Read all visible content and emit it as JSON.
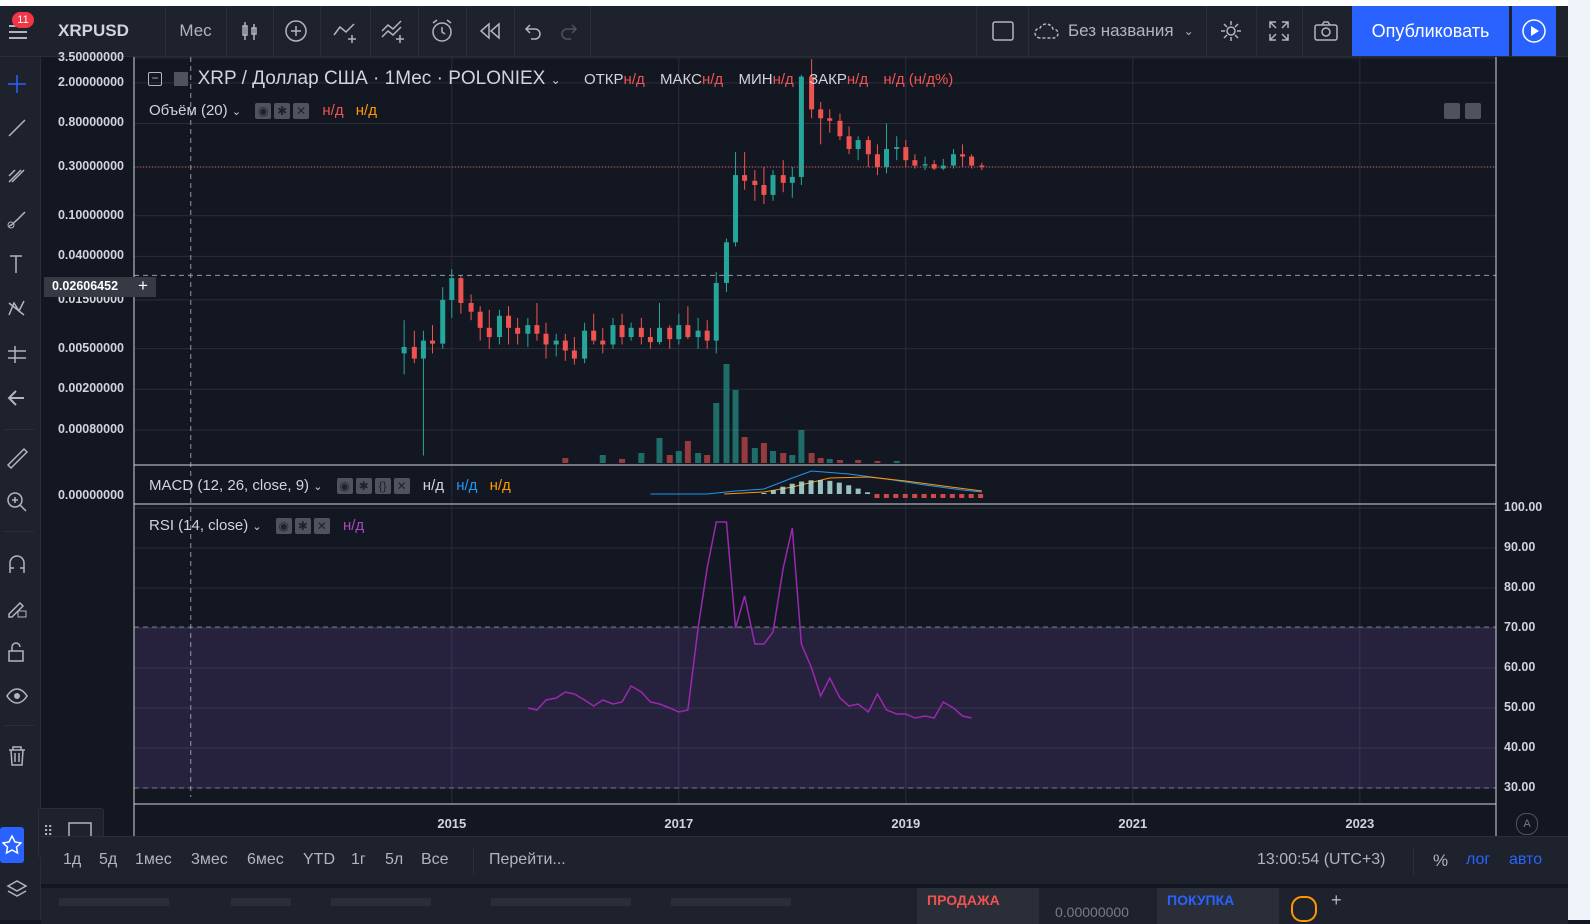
{
  "toolbar": {
    "notification_count": "11",
    "symbol": "XRPUSD",
    "interval": "Мес",
    "layout_name": "Без названия",
    "publish_label": "Опубликовать"
  },
  "legend": {
    "title": "XRP / Доллар США · 1Мес · POLONIEX",
    "open_label": "ОТКР",
    "open_value": "н/д",
    "high_label": "МАКС",
    "high_value": "н/д",
    "low_label": "МИН",
    "low_value": "н/д",
    "close_label": "ЗАКР",
    "close_value": "н/д",
    "change_value": "н/д (н/д%)"
  },
  "volume_legend": {
    "name": "Объём (20)",
    "v1": "н/д",
    "v2": "н/д"
  },
  "macd_legend": {
    "name": "MACD (12, 26, close, 9)",
    "v1": "н/д",
    "v2": "н/д",
    "v3": "н/д"
  },
  "rsi_legend": {
    "name": "RSI (14, close)",
    "v1": "н/д"
  },
  "price_axis": [
    "3.50000000",
    "2.00000000",
    "0.80000000",
    "0.30000000",
    "0.10000000",
    "0.04000000",
    "0.01500000",
    "0.00500000",
    "0.00200000",
    "0.00080000"
  ],
  "crosshair_price": "0.02606452",
  "macd_axis": "0.00000000",
  "rsi_axis": [
    "100.00",
    "90.00",
    "80.00",
    "70.00",
    "60.00",
    "50.00",
    "40.00",
    "30.00"
  ],
  "time_axis": [
    "2015",
    "2017",
    "2019",
    "2021",
    "2023"
  ],
  "bottom": {
    "ranges": [
      "1д",
      "5д",
      "1мес",
      "3мес",
      "6мес",
      "YTD",
      "1г",
      "5л",
      "Все"
    ],
    "goto": "Перейти...",
    "clock": "13:00:54 (UTC+3)",
    "percent": "%",
    "log": "лог",
    "auto": "авто"
  },
  "panel": {
    "sell": "ПРОДАЖА",
    "buy": "ПОКУПКА",
    "price_partial": "0.00000000"
  },
  "colors": {
    "up": "#26a69a",
    "down": "#ef5350",
    "rsi": "#9c27b0",
    "accent": "#2962ff"
  },
  "chart_data": {
    "type": "candlestick",
    "title": "XRP / Доллар США · 1Мес · POLONIEX",
    "y_scale": "log",
    "x_range": [
      2012.2,
      2024.2
    ],
    "candles": [
      {
        "t": 2014.58,
        "o": 0.0045,
        "h": 0.0095,
        "l": 0.0028,
        "c": 0.0052
      },
      {
        "t": 2014.67,
        "o": 0.0052,
        "h": 0.0075,
        "l": 0.0036,
        "c": 0.004
      },
      {
        "t": 2014.75,
        "o": 0.004,
        "h": 0.0075,
        "l": 0.00045,
        "c": 0.006
      },
      {
        "t": 2014.83,
        "o": 0.006,
        "h": 0.0085,
        "l": 0.0045,
        "c": 0.0056
      },
      {
        "t": 2014.92,
        "o": 0.0056,
        "h": 0.02,
        "l": 0.005,
        "c": 0.015
      },
      {
        "t": 2015.0,
        "o": 0.015,
        "h": 0.03,
        "l": 0.01,
        "c": 0.0245
      },
      {
        "t": 2015.08,
        "o": 0.0245,
        "h": 0.026,
        "l": 0.011,
        "c": 0.014
      },
      {
        "t": 2015.17,
        "o": 0.014,
        "h": 0.017,
        "l": 0.0095,
        "c": 0.0115
      },
      {
        "t": 2015.25,
        "o": 0.0115,
        "h": 0.013,
        "l": 0.006,
        "c": 0.008
      },
      {
        "t": 2015.33,
        "o": 0.008,
        "h": 0.012,
        "l": 0.005,
        "c": 0.0065
      },
      {
        "t": 2015.42,
        "o": 0.0065,
        "h": 0.012,
        "l": 0.0055,
        "c": 0.0105
      },
      {
        "t": 2015.5,
        "o": 0.0105,
        "h": 0.013,
        "l": 0.0055,
        "c": 0.008
      },
      {
        "t": 2015.58,
        "o": 0.008,
        "h": 0.01,
        "l": 0.0055,
        "c": 0.007
      },
      {
        "t": 2015.67,
        "o": 0.007,
        "h": 0.01,
        "l": 0.0052,
        "c": 0.0085
      },
      {
        "t": 2015.75,
        "o": 0.0085,
        "h": 0.014,
        "l": 0.006,
        "c": 0.007
      },
      {
        "t": 2015.83,
        "o": 0.007,
        "h": 0.009,
        "l": 0.004,
        "c": 0.0055
      },
      {
        "t": 2015.92,
        "o": 0.0055,
        "h": 0.007,
        "l": 0.0042,
        "c": 0.006
      },
      {
        "t": 2016.0,
        "o": 0.006,
        "h": 0.007,
        "l": 0.0038,
        "c": 0.0048
      },
      {
        "t": 2016.08,
        "o": 0.0048,
        "h": 0.0065,
        "l": 0.0035,
        "c": 0.004
      },
      {
        "t": 2016.17,
        "o": 0.004,
        "h": 0.009,
        "l": 0.0036,
        "c": 0.0075
      },
      {
        "t": 2016.25,
        "o": 0.0075,
        "h": 0.011,
        "l": 0.0055,
        "c": 0.006
      },
      {
        "t": 2016.33,
        "o": 0.006,
        "h": 0.008,
        "l": 0.0045,
        "c": 0.0055
      },
      {
        "t": 2016.42,
        "o": 0.0055,
        "h": 0.01,
        "l": 0.005,
        "c": 0.0085
      },
      {
        "t": 2016.5,
        "o": 0.0085,
        "h": 0.011,
        "l": 0.0055,
        "c": 0.0065
      },
      {
        "t": 2016.58,
        "o": 0.0065,
        "h": 0.009,
        "l": 0.006,
        "c": 0.008
      },
      {
        "t": 2016.67,
        "o": 0.008,
        "h": 0.01,
        "l": 0.0055,
        "c": 0.0065
      },
      {
        "t": 2016.75,
        "o": 0.0065,
        "h": 0.008,
        "l": 0.005,
        "c": 0.0058
      },
      {
        "t": 2016.83,
        "o": 0.0058,
        "h": 0.014,
        "l": 0.0055,
        "c": 0.008
      },
      {
        "t": 2016.92,
        "o": 0.008,
        "h": 0.0085,
        "l": 0.005,
        "c": 0.0062
      },
      {
        "t": 2017.0,
        "o": 0.0062,
        "h": 0.011,
        "l": 0.0055,
        "c": 0.0085
      },
      {
        "t": 2017.08,
        "o": 0.0085,
        "h": 0.013,
        "l": 0.0062,
        "c": 0.0065
      },
      {
        "t": 2017.17,
        "o": 0.0065,
        "h": 0.01,
        "l": 0.005,
        "c": 0.0075
      },
      {
        "t": 2017.25,
        "o": 0.0075,
        "h": 0.0095,
        "l": 0.005,
        "c": 0.006
      },
      {
        "t": 2017.33,
        "o": 0.006,
        "h": 0.028,
        "l": 0.0045,
        "c": 0.022
      },
      {
        "t": 2017.42,
        "o": 0.022,
        "h": 0.06,
        "l": 0.018,
        "c": 0.055
      },
      {
        "t": 2017.5,
        "o": 0.055,
        "h": 0.42,
        "l": 0.05,
        "c": 0.25
      },
      {
        "t": 2017.58,
        "o": 0.25,
        "h": 0.42,
        "l": 0.18,
        "c": 0.22
      },
      {
        "t": 2017.67,
        "o": 0.22,
        "h": 0.28,
        "l": 0.14,
        "c": 0.2
      },
      {
        "t": 2017.75,
        "o": 0.2,
        "h": 0.3,
        "l": 0.13,
        "c": 0.16
      },
      {
        "t": 2017.83,
        "o": 0.16,
        "h": 0.28,
        "l": 0.14,
        "c": 0.25
      },
      {
        "t": 2017.92,
        "o": 0.25,
        "h": 0.35,
        "l": 0.17,
        "c": 0.21
      },
      {
        "t": 2018.0,
        "o": 0.21,
        "h": 0.3,
        "l": 0.15,
        "c": 0.24
      },
      {
        "t": 2018.08,
        "o": 0.24,
        "h": 2.4,
        "l": 0.2,
        "c": 2.3
      },
      {
        "t": 2018.17,
        "o": 2.3,
        "h": 3.4,
        "l": 0.9,
        "c": 1.1
      },
      {
        "t": 2018.25,
        "o": 1.1,
        "h": 1.3,
        "l": 0.5,
        "c": 0.9
      },
      {
        "t": 2018.33,
        "o": 0.9,
        "h": 1.1,
        "l": 0.65,
        "c": 0.85
      },
      {
        "t": 2018.42,
        "o": 0.85,
        "h": 1.0,
        "l": 0.55,
        "c": 0.6
      },
      {
        "t": 2018.5,
        "o": 0.6,
        "h": 0.75,
        "l": 0.4,
        "c": 0.45
      },
      {
        "t": 2018.58,
        "o": 0.45,
        "h": 0.6,
        "l": 0.35,
        "c": 0.55
      },
      {
        "t": 2018.67,
        "o": 0.55,
        "h": 0.6,
        "l": 0.3,
        "c": 0.4
      },
      {
        "t": 2018.75,
        "o": 0.4,
        "h": 0.5,
        "l": 0.25,
        "c": 0.3
      },
      {
        "t": 2018.83,
        "o": 0.3,
        "h": 0.8,
        "l": 0.26,
        "c": 0.45
      },
      {
        "t": 2018.92,
        "o": 0.45,
        "h": 0.6,
        "l": 0.35,
        "c": 0.47
      },
      {
        "t": 2019.0,
        "o": 0.47,
        "h": 0.55,
        "l": 0.3,
        "c": 0.35
      },
      {
        "t": 2019.08,
        "o": 0.35,
        "h": 0.4,
        "l": 0.29,
        "c": 0.31
      },
      {
        "t": 2019.17,
        "o": 0.31,
        "h": 0.38,
        "l": 0.28,
        "c": 0.32
      },
      {
        "t": 2019.25,
        "o": 0.32,
        "h": 0.35,
        "l": 0.28,
        "c": 0.29
      },
      {
        "t": 2019.33,
        "o": 0.29,
        "h": 0.36,
        "l": 0.28,
        "c": 0.31
      },
      {
        "t": 2019.42,
        "o": 0.31,
        "h": 0.45,
        "l": 0.29,
        "c": 0.4
      },
      {
        "t": 2019.5,
        "o": 0.4,
        "h": 0.5,
        "l": 0.3,
        "c": 0.38
      },
      {
        "t": 2019.58,
        "o": 0.38,
        "h": 0.4,
        "l": 0.29,
        "c": 0.31
      },
      {
        "t": 2019.67,
        "o": 0.31,
        "h": 0.33,
        "l": 0.28,
        "c": 0.3
      }
    ],
    "current_price_line": 0.3,
    "crosshair": {
      "price": 0.02606452,
      "t": 2012.7
    },
    "volume": [
      {
        "t": 2016.0,
        "v": 0.05,
        "up": false
      },
      {
        "t": 2016.33,
        "v": 0.08,
        "up": true
      },
      {
        "t": 2016.5,
        "v": 0.04,
        "up": false
      },
      {
        "t": 2016.67,
        "v": 0.1,
        "up": true
      },
      {
        "t": 2016.83,
        "v": 0.25,
        "up": true
      },
      {
        "t": 2016.92,
        "v": 0.08,
        "up": false
      },
      {
        "t": 2017.0,
        "v": 0.12,
        "up": true
      },
      {
        "t": 2017.08,
        "v": 0.22,
        "up": false
      },
      {
        "t": 2017.17,
        "v": 0.1,
        "up": true
      },
      {
        "t": 2017.25,
        "v": 0.08,
        "up": false
      },
      {
        "t": 2017.33,
        "v": 0.6,
        "up": true
      },
      {
        "t": 2017.42,
        "v": 0.99,
        "up": true
      },
      {
        "t": 2017.5,
        "v": 0.73,
        "up": true
      },
      {
        "t": 2017.58,
        "v": 0.26,
        "up": false
      },
      {
        "t": 2017.67,
        "v": 0.15,
        "up": true
      },
      {
        "t": 2017.75,
        "v": 0.2,
        "up": false
      },
      {
        "t": 2017.83,
        "v": 0.12,
        "up": true
      },
      {
        "t": 2017.92,
        "v": 0.1,
        "up": false
      },
      {
        "t": 2018.0,
        "v": 0.08,
        "up": true
      },
      {
        "t": 2018.08,
        "v": 0.33,
        "up": true
      },
      {
        "t": 2018.17,
        "v": 0.1,
        "up": false
      },
      {
        "t": 2018.25,
        "v": 0.05,
        "up": false
      },
      {
        "t": 2018.33,
        "v": 0.04,
        "up": true
      },
      {
        "t": 2018.42,
        "v": 0.03,
        "up": false
      },
      {
        "t": 2018.58,
        "v": 0.03,
        "up": false
      },
      {
        "t": 2018.75,
        "v": 0.02,
        "up": false
      },
      {
        "t": 2018.92,
        "v": 0.02,
        "up": true
      }
    ],
    "rsi": [
      {
        "t": 2015.67,
        "v": 50
      },
      {
        "t": 2015.75,
        "v": 49.5
      },
      {
        "t": 2015.83,
        "v": 52
      },
      {
        "t": 2015.92,
        "v": 52.5
      },
      {
        "t": 2016.0,
        "v": 54
      },
      {
        "t": 2016.08,
        "v": 53.5
      },
      {
        "t": 2016.17,
        "v": 52
      },
      {
        "t": 2016.25,
        "v": 50.5
      },
      {
        "t": 2016.33,
        "v": 52
      },
      {
        "t": 2016.42,
        "v": 51
      },
      {
        "t": 2016.5,
        "v": 51.5
      },
      {
        "t": 2016.58,
        "v": 55.5
      },
      {
        "t": 2016.67,
        "v": 54
      },
      {
        "t": 2016.75,
        "v": 51.5
      },
      {
        "t": 2016.83,
        "v": 51
      },
      {
        "t": 2016.92,
        "v": 50
      },
      {
        "t": 2017.0,
        "v": 49
      },
      {
        "t": 2017.08,
        "v": 49.5
      },
      {
        "t": 2017.17,
        "v": 70
      },
      {
        "t": 2017.25,
        "v": 85
      },
      {
        "t": 2017.33,
        "v": 96.5
      },
      {
        "t": 2017.42,
        "v": 96.5
      },
      {
        "t": 2017.5,
        "v": 70
      },
      {
        "t": 2017.58,
        "v": 78
      },
      {
        "t": 2017.67,
        "v": 66
      },
      {
        "t": 2017.75,
        "v": 66
      },
      {
        "t": 2017.83,
        "v": 69
      },
      {
        "t": 2017.92,
        "v": 85
      },
      {
        "t": 2018.0,
        "v": 95
      },
      {
        "t": 2018.08,
        "v": 66
      },
      {
        "t": 2018.17,
        "v": 60
      },
      {
        "t": 2018.25,
        "v": 53
      },
      {
        "t": 2018.33,
        "v": 57.5
      },
      {
        "t": 2018.42,
        "v": 52.5
      },
      {
        "t": 2018.5,
        "v": 50.5
      },
      {
        "t": 2018.58,
        "v": 51
      },
      {
        "t": 2018.67,
        "v": 49
      },
      {
        "t": 2018.75,
        "v": 53.5
      },
      {
        "t": 2018.83,
        "v": 49.5
      },
      {
        "t": 2018.92,
        "v": 48.5
      },
      {
        "t": 2019.0,
        "v": 48.5
      },
      {
        "t": 2019.08,
        "v": 47.5
      },
      {
        "t": 2019.17,
        "v": 48
      },
      {
        "t": 2019.25,
        "v": 47.5
      },
      {
        "t": 2019.33,
        "v": 51.5
      },
      {
        "t": 2019.42,
        "v": 50
      },
      {
        "t": 2019.5,
        "v": 48
      },
      {
        "t": 2019.58,
        "v": 47.5
      }
    ],
    "rsi_bands": [
      30,
      70
    ]
  }
}
